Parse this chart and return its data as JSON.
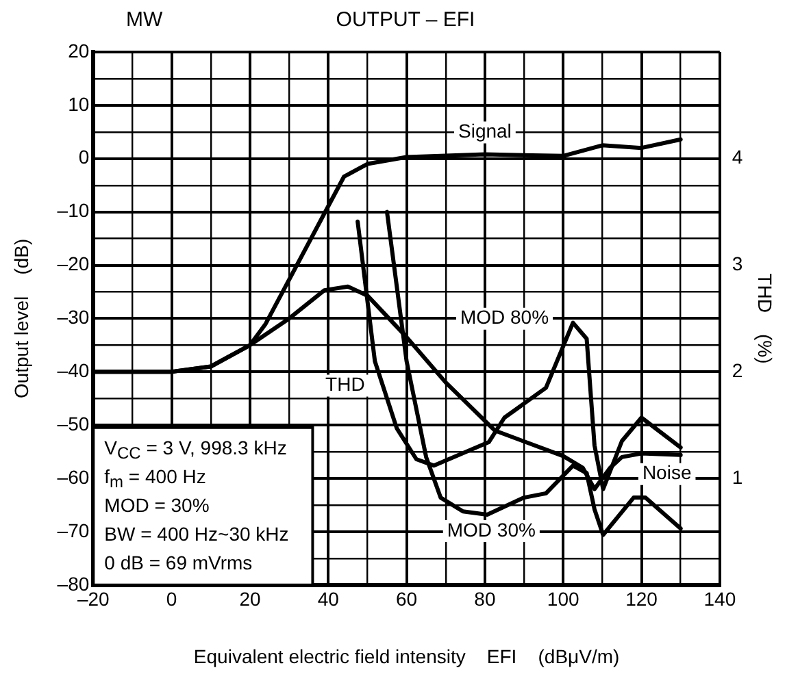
{
  "chart_data": {
    "type": "line",
    "title": "OUTPUT – EFI",
    "subtitle": "MW",
    "xlabel": "Equivalent electric field intensity    EFI    (dBμV/m)",
    "ylabel": "Output level    (dB)",
    "y2label": "THD    (%)",
    "xlim": [
      -20,
      140
    ],
    "xticks": [
      {
        "value": -20,
        "label": "–20"
      },
      {
        "value": -10,
        "label": null
      },
      0,
      {
        "value": 10,
        "label": null
      },
      20,
      {
        "value": 30,
        "label": null
      },
      40,
      {
        "value": 50,
        "label": null
      },
      60,
      {
        "value": 70,
        "label": null
      },
      80,
      {
        "value": 90,
        "label": null
      },
      100,
      {
        "value": 110,
        "label": null
      },
      120,
      {
        "value": 130,
        "label": null
      },
      140
    ],
    "ylim": [
      -80,
      20
    ],
    "yticks": [
      {
        "value": -80,
        "label": "–80"
      },
      {
        "value": -75,
        "label": null
      },
      {
        "value": -70,
        "label": "–70"
      },
      {
        "value": -65,
        "label": null
      },
      {
        "value": -60,
        "label": "–60"
      },
      {
        "value": -55,
        "label": null
      },
      {
        "value": -50,
        "label": "–50"
      },
      {
        "value": -45,
        "label": null
      },
      {
        "value": -40,
        "label": "–40"
      },
      {
        "value": -35,
        "label": null
      },
      {
        "value": -30,
        "label": "–30"
      },
      {
        "value": -25,
        "label": null
      },
      {
        "value": -20,
        "label": "–20"
      },
      {
        "value": -15,
        "label": null
      },
      {
        "value": -10,
        "label": "–10"
      },
      {
        "value": -5,
        "label": null
      },
      0,
      {
        "value": 5,
        "label": null
      },
      10,
      {
        "value": 15,
        "label": null
      },
      20
    ],
    "y2lim": [
      0,
      5
    ],
    "y2ticks": [
      1,
      2,
      3,
      4
    ],
    "grid": true,
    "legend": false,
    "marker": "none",
    "line_style": "solid",
    "series": [
      {
        "name": "Signal",
        "color": "#000000",
        "x": [
          -20,
          0,
          10,
          20,
          24,
          44,
          50,
          60,
          80,
          100,
          110,
          120,
          130
        ],
        "values": [
          -40,
          -40,
          -39,
          -35,
          -31,
          -3.4,
          -1,
          0.3,
          0.8,
          0.5,
          2.5,
          2,
          3.6
        ]
      },
      {
        "name": "Noise",
        "color": "#000000",
        "x": [
          -20,
          0,
          10,
          20,
          30,
          39,
          45,
          50,
          60,
          70,
          82.5,
          100,
          105,
          108,
          112,
          115,
          120,
          130
        ],
        "values": [
          -40,
          -40,
          -39,
          -35,
          -30,
          -24.7,
          -24,
          -25.7,
          -33.5,
          -42,
          -51,
          -55.8,
          -58,
          -62,
          -58,
          -56,
          -55.3,
          -55.6
        ]
      },
      {
        "name": "MOD 80%",
        "color": "#000000",
        "axis": "y2",
        "x": [
          47.5,
          51.9,
          57.5,
          62.5,
          67,
          81,
          85,
          95.6,
          102.5,
          106,
          108,
          110.2,
          115,
          120,
          130
        ],
        "values": [
          3.41,
          2.1,
          1.47,
          1.18,
          1.12,
          1.34,
          1.57,
          1.85,
          2.46,
          2.31,
          1.31,
          0.9,
          1.35,
          1.57,
          1.29
        ]
      },
      {
        "name": "MOD 30%",
        "color": "#000000",
        "axis": "y2",
        "x": [
          55,
          60,
          65,
          68.7,
          74.4,
          80.6,
          90,
          95.6,
          102.5,
          106,
          108,
          110.2,
          118,
          121,
          130
        ],
        "values": [
          3.5,
          2.1,
          1.2,
          0.82,
          0.69,
          0.66,
          0.82,
          0.86,
          1.12,
          1.05,
          0.71,
          0.47,
          0.82,
          0.82,
          0.53
        ]
      }
    ],
    "annotations": [
      {
        "text": "THD",
        "x": 44.3,
        "y": -42.6
      },
      "V$_{CC}$ = 3 V, 998.3 kHz",
      "f$_{m}$ = 400 Hz",
      "MOD = 30%",
      "BW = 400 Hz~30 kHz",
      "0 dB = 69 mVrms"
    ]
  }
}
